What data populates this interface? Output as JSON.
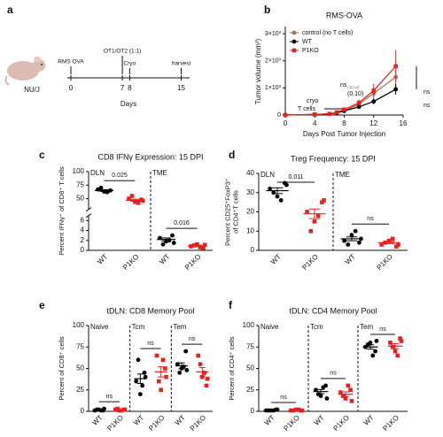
{
  "panel_a": {
    "label": "a",
    "mouse": "NU/J",
    "days": [
      0,
      7,
      8,
      15
    ],
    "events": [
      "RMS OVA",
      "OT1/OT2 (1:1)",
      "Cryo",
      "harvest"
    ],
    "xlabel": "Days"
  },
  "chart_data": [
    {
      "type": "line",
      "panel_label": "b",
      "title": "RMS-OVA",
      "xlabel": "Days Post Tumor Injection",
      "ylabel": "Tumor volume (mm³)",
      "x": [
        0,
        4,
        6,
        7,
        8,
        10,
        12,
        15
      ],
      "series": [
        {
          "name": "control (no T cells)",
          "color": "#a0785a",
          "marker": "circle",
          "values": [
            0,
            20,
            40,
            80,
            150,
            400,
            800,
            1400
          ],
          "errors": [
            0,
            5,
            10,
            20,
            40,
            100,
            200,
            400
          ]
        },
        {
          "name": "WT",
          "color": "#000000",
          "marker": "circle",
          "values": [
            0,
            20,
            40,
            80,
            150,
            300,
            500,
            950
          ],
          "errors": [
            0,
            5,
            10,
            15,
            30,
            60,
            100,
            200
          ]
        },
        {
          "name": "P1KO",
          "color": "#e8211c",
          "marker": "square",
          "values": [
            0,
            20,
            40,
            100,
            200,
            450,
            900,
            1800
          ],
          "errors": [
            0,
            5,
            10,
            20,
            40,
            120,
            250,
            600
          ]
        }
      ],
      "xlim": [
        0,
        16
      ],
      "xticks": [
        0,
        4,
        8,
        12,
        16
      ],
      "ylim": [
        0,
        3200
      ],
      "yticks": [
        0,
        {
          "value": 1000,
          "label": "1×10³"
        },
        {
          "value": 2000,
          "label": "2×10³"
        },
        {
          "value": 3000,
          "label": "3×10³"
        }
      ],
      "annotations": [
        "cryo",
        "T cells",
        "ns",
        "ctrl-wt",
        "(0.10)",
        "ns",
        "ns"
      ]
    },
    {
      "type": "dot",
      "panel_label": "c",
      "title": "CD8 IFNγ Expression: 15 DPI",
      "ylabel": [
        "Percent IFNγ⁺ of CD8⁺ T cells"
      ],
      "ylim": [
        0,
        7
      ],
      "yticks": [
        0,
        2,
        4,
        6
      ],
      "ylim_break": [
        30,
        100
      ],
      "yticks_break": [
        50,
        75,
        100
      ],
      "colors": [
        "#000000",
        "#e8211c"
      ],
      "markers": [
        "circle",
        "square"
      ],
      "groups": [
        {
          "name": "DLN",
          "categories": [
            "WT",
            "P1KO"
          ],
          "points": [
            [
              67,
              63,
              65,
              70,
              62
            ],
            [
              50,
              44,
              48,
              55,
              42,
              46
            ]
          ],
          "means": [
            65,
            47
          ],
          "sems": [
            1.5,
            2
          ],
          "comparison": "0.025"
        },
        {
          "name": "TME",
          "categories": [
            "WT",
            "P1KO"
          ],
          "points": [
            [
              2.5,
              1.8,
              3.0,
              1.2,
              2.0,
              1.5
            ],
            [
              0.8,
              1.2,
              0.5,
              1.0,
              0.6,
              1.1
            ]
          ],
          "means": [
            2.2,
            0.9
          ],
          "sems": [
            0.3,
            0.15
          ],
          "comparison": "0.016"
        }
      ]
    },
    {
      "type": "dot",
      "panel_label": "d",
      "title": "Treg Frequency: 15 DPI",
      "ylabel": [
        "Percent CD25⁺FoxP3⁺",
        "of CD4⁺T cells"
      ],
      "ylim": [
        0,
        40
      ],
      "yticks": [
        0,
        10,
        20,
        30,
        40
      ],
      "colors": [
        "#000000",
        "#e8211c"
      ],
      "markers": [
        "circle",
        "square"
      ],
      "groups": [
        {
          "name": "DLN",
          "categories": [
            "WT",
            "P1KO"
          ],
          "points": [
            [
              32,
              28,
              35,
              30,
              26,
              34
            ],
            [
              20,
              15,
              25,
              10,
              18,
              26
            ]
          ],
          "means": [
            31,
            19
          ],
          "sems": [
            1.5,
            2.5
          ],
          "comparison": "0.011"
        },
        {
          "name": "TME",
          "categories": [
            "WT",
            "P1KO"
          ],
          "points": [
            [
              5,
              8,
              4,
              3,
              10,
              6
            ],
            [
              3,
              5,
              2,
              4,
              6,
              3
            ]
          ],
          "means": [
            6,
            4
          ],
          "sems": [
            1,
            0.6
          ],
          "comparison": "ns"
        }
      ]
    },
    {
      "type": "dot",
      "panel_label": "e",
      "title": "tDLN: CD8 Memory Pool",
      "ylabel": [
        "Percent of CD8⁺ cells"
      ],
      "ylim": [
        0,
        100
      ],
      "yticks": [
        0,
        25,
        50,
        75,
        100
      ],
      "colors": [
        "#000000",
        "#e8211c"
      ],
      "markers": [
        "circle",
        "square"
      ],
      "groups": [
        {
          "name": "Naive",
          "categories": [
            "WT",
            "P1KO"
          ],
          "points": [
            [
              1,
              2,
              1,
              2,
              1,
              3
            ],
            [
              2,
              1,
              2,
              3,
              1,
              2
            ]
          ],
          "means": [
            1.7,
            1.8
          ],
          "sems": [
            0.3,
            0.3
          ],
          "comparison": "ns"
        },
        {
          "name": "Tcm",
          "categories": [
            "WT",
            "P1KO"
          ],
          "points": [
            [
              35,
              20,
              45,
              60,
              30,
              40
            ],
            [
              65,
              25,
              50,
              35,
              60,
              40
            ]
          ],
          "means": [
            38,
            46
          ],
          "sems": [
            5.5,
            6
          ],
          "comparison": "ns"
        },
        {
          "name": "Tem",
          "categories": [
            "WT",
            "P1KO"
          ],
          "points": [
            [
              55,
              50,
              70,
              45,
              52,
              48
            ],
            [
              65,
              40,
              30,
              55,
              45,
              38
            ]
          ],
          "means": [
            53,
            46
          ],
          "sems": [
            3.5,
            5
          ],
          "comparison": "ns"
        }
      ]
    },
    {
      "type": "dot",
      "panel_label": "f",
      "title": "tDLN: CD4 Memory Pool",
      "ylabel": [
        "Percent of CD4⁺ cells"
      ],
      "ylim": [
        0,
        100
      ],
      "yticks": [
        0,
        25,
        50,
        75,
        100
      ],
      "colors": [
        "#000000",
        "#e8211c"
      ],
      "markers": [
        "circle",
        "square"
      ],
      "groups": [
        {
          "name": "Naive",
          "categories": [
            "WT",
            "P1KO"
          ],
          "points": [
            [
              1,
              1,
              2,
              1,
              1,
              2
            ],
            [
              1,
              2,
              1,
              1,
              2,
              1
            ]
          ],
          "means": [
            1.3,
            1.3
          ],
          "sems": [
            0.2,
            0.2
          ],
          "comparison": "ns"
        },
        {
          "name": "Tcm",
          "categories": [
            "WT",
            "P1KO"
          ],
          "points": [
            [
              25,
              18,
              30,
              20,
              28,
              15
            ],
            [
              22,
              15,
              25,
              18,
              30,
              12
            ]
          ],
          "means": [
            23,
            20
          ],
          "sems": [
            2.5,
            2.7
          ],
          "comparison": "ns"
        },
        {
          "name": "Tem",
          "categories": [
            "WT",
            "P1KO"
          ],
          "points": [
            [
              75,
              80,
              70,
              78,
              65,
              82
            ],
            [
              80,
              70,
              85,
              75,
              65,
              82
            ]
          ],
          "means": [
            75,
            76
          ],
          "sems": [
            2.5,
            3
          ],
          "comparison": "ns"
        }
      ]
    }
  ]
}
